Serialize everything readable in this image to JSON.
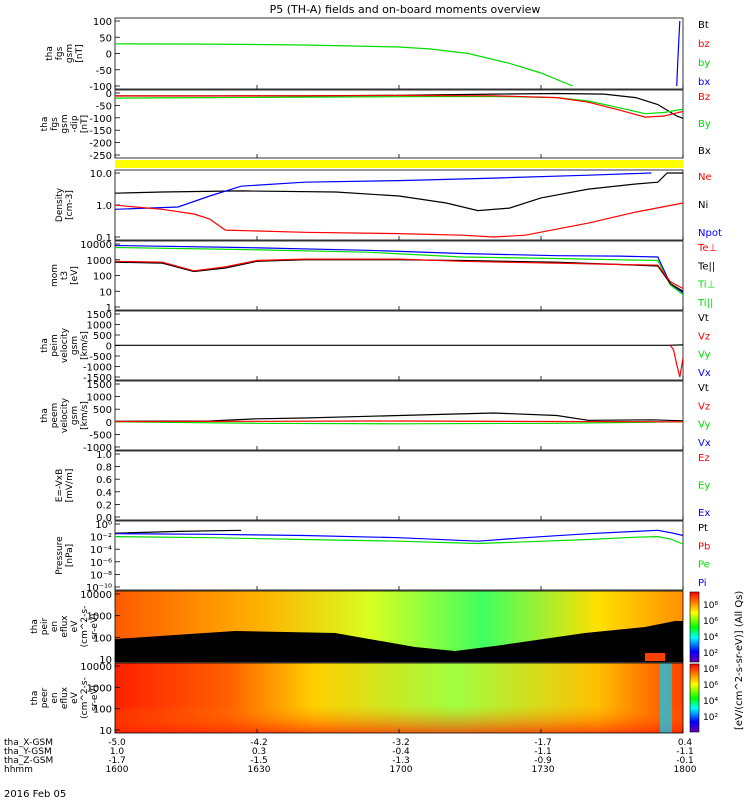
{
  "title": "P5 (TH-A) fields and on-board moments overview",
  "date_label": "2016 Feb 05",
  "colorbar": {
    "label": "[eV/(cm^2-s-sr-eV)] (All Qs)",
    "ticks1": [
      "10⁸",
      "10⁶",
      "10⁴",
      "10²"
    ],
    "ticks2": [
      "10⁸",
      "10⁶",
      "10⁴",
      "10²"
    ]
  },
  "colors": {
    "black": "#000000",
    "red": "#ff0000",
    "green": "#00dd00",
    "blue": "#0000ff",
    "yellow": "#ffff00"
  },
  "chart_data": {
    "type": "line",
    "x_ticks_label": [
      "1600",
      "1630",
      "1700",
      "1730",
      "1800"
    ],
    "ephemeris": [
      {
        "label": "tha_X-GSM",
        "values": [
          "-5.0",
          "-4.2",
          "-3.2",
          "-1.7",
          "0.4"
        ]
      },
      {
        "label": "tha_Y-GSM",
        "values": [
          "1.0",
          "0.3",
          "-0.4",
          "-1.1",
          "-1.1"
        ]
      },
      {
        "label": "tha_Z-GSM",
        "values": [
          "-1.7",
          "-1.5",
          "-1.3",
          "-0.9",
          "-0.1"
        ]
      },
      {
        "label": "hhmm",
        "values": [
          "1600",
          "1630",
          "1700",
          "1730",
          "1800"
        ]
      }
    ],
    "panels": [
      {
        "id": "p1",
        "ylabel": [
          "tha",
          "fgs",
          "gsm",
          "[nT]"
        ],
        "yticks": [
          "100",
          "50",
          "0",
          "-50",
          "-100"
        ],
        "legend": [
          {
            "text": "Bt",
            "color": "#000000"
          },
          {
            "text": "bz",
            "color": "#ff0000"
          },
          {
            "text": "by",
            "color": "#00dd00"
          },
          {
            "text": "bx",
            "color": "#0000ff"
          }
        ],
        "ylim": [
          -100,
          100
        ],
        "series": [
          {
            "color": "#00dd00",
            "x": [
              0,
              30,
              60,
              90,
              100,
              112,
              125,
              135,
              145
            ],
            "y": [
              30,
              29,
              26,
              20,
              14,
              0,
              -30,
              -60,
              -100
            ]
          },
          {
            "color": "#0000ff",
            "x": [
              178,
              178.4,
              179
            ],
            "y": [
              -100,
              -10,
              100
            ]
          }
        ]
      },
      {
        "id": "p2",
        "ylabel": [
          "tha",
          "fgs",
          "gsm",
          "-dip",
          "[nT]"
        ],
        "yticks": [
          "0",
          "-50",
          "-100",
          "-150",
          "-200",
          "-250"
        ],
        "legend": [
          {
            "text": "Bz",
            "color": "#ff0000"
          },
          {
            "text": "By",
            "color": "#00dd00"
          },
          {
            "text": "Bx",
            "color": "#000000"
          }
        ],
        "ylim": [
          -260,
          10
        ],
        "series": [
          {
            "color": "#000000",
            "x": [
              0,
              30,
              60,
              90,
              120,
              140,
              155,
              165,
              172,
              178,
              180
            ],
            "y": [
              -2,
              -2,
              -2,
              0,
              5,
              8,
              5,
              -10,
              -40,
              -90,
              -100
            ]
          },
          {
            "color": "#00dd00",
            "x": [
              0,
              30,
              60,
              90,
              120,
              140,
              150,
              160,
              168,
              174,
              180
            ],
            "y": [
              -12,
              -10,
              -8,
              -6,
              -5,
              -10,
              -25,
              -55,
              -80,
              -75,
              -60
            ]
          },
          {
            "color": "#ff0000",
            "x": [
              0,
              30,
              60,
              90,
              120,
              140,
              150,
              160,
              168,
              174,
              180
            ],
            "y": [
              -3,
              -3,
              -2,
              -1,
              -2,
              -10,
              -30,
              -65,
              -95,
              -90,
              -70
            ]
          }
        ]
      },
      {
        "id": "p4",
        "ylabel": [
          "Density",
          "[cm-3]"
        ],
        "yticks": [
          "10.0",
          "1.0",
          "0.1"
        ],
        "legend": [
          {
            "text": "Ne",
            "color": "#ff0000"
          },
          {
            "text": "Ni",
            "color": "#000000"
          },
          {
            "text": "Npot",
            "color": "#0000ff"
          }
        ],
        "scale": "log",
        "ylim": [
          0.05,
          30
        ],
        "series": [
          {
            "color": "#000000",
            "x": [
              0,
              15,
              40,
              70,
              90,
              105,
              115,
              125,
              135,
              150,
              165,
              172,
              175,
              180
            ],
            "y": [
              4,
              4.5,
              5,
              4.5,
              3,
              1.5,
              0.7,
              0.9,
              2.5,
              6,
              10,
              12,
              30,
              30
            ]
          },
          {
            "color": "#0000ff",
            "x": [
              0,
              20,
              30,
              40,
              60,
              90,
              120,
              150,
              170
            ],
            "y": [
              0.8,
              1,
              3,
              8,
              12,
              14,
              18,
              24,
              30
            ]
          },
          {
            "color": "#ff0000",
            "x": [
              0,
              15,
              25,
              30,
              35,
              60,
              90,
              110,
              120,
              130,
              150,
              165,
              180
            ],
            "y": [
              1.2,
              0.8,
              0.5,
              0.3,
              0.1,
              0.08,
              0.07,
              0.06,
              0.05,
              0.06,
              0.2,
              0.6,
              1.5
            ]
          }
        ]
      },
      {
        "id": "p5",
        "ylabel": [
          "mom",
          "t3",
          "[eV]"
        ],
        "yticks": [
          "10000",
          "1000",
          "100",
          "10",
          "1"
        ],
        "legend": [
          {
            "text": "Te⊥",
            "color": "#ff0000"
          },
          {
            "text": "Te||",
            "color": "#000000"
          },
          {
            "text": "Ti⊥",
            "color": "#00dd00"
          },
          {
            "text": "Ti||",
            "color": "#00dd00"
          }
        ],
        "scale": "log",
        "ylim": [
          1,
          10000
        ],
        "series": [
          {
            "color": "#0000ff",
            "x": [
              0,
              40,
              80,
              110,
              140,
              160,
              172,
              176,
              180
            ],
            "y": [
              8000,
              6000,
              4000,
              2500,
              1800,
              1700,
              1500,
              30,
              8
            ]
          },
          {
            "color": "#00dd00",
            "x": [
              0,
              40,
              80,
              110,
              140,
              160,
              172,
              176,
              180
            ],
            "y": [
              6000,
              4500,
              3000,
              1500,
              1200,
              1000,
              900,
              25,
              6
            ]
          },
          {
            "color": "#000000",
            "x": [
              0,
              15,
              25,
              35,
              45,
              60,
              90,
              110,
              140,
              160,
              172,
              176,
              180
            ],
            "y": [
              700,
              600,
              180,
              300,
              800,
              1000,
              1000,
              900,
              700,
              500,
              400,
              30,
              10
            ]
          },
          {
            "color": "#ff0000",
            "x": [
              0,
              15,
              25,
              35,
              45,
              60,
              90,
              110,
              140,
              160,
              172,
              176,
              180
            ],
            "y": [
              800,
              700,
              200,
              350,
              900,
              1100,
              1100,
              800,
              600,
              500,
              450,
              40,
              15
            ]
          }
        ]
      },
      {
        "id": "p6",
        "ylabel": [
          "tha",
          "peim",
          "velocity",
          "gsm",
          "[km/s]"
        ],
        "yticks": [
          "1500",
          "1000",
          "500",
          "0",
          "-500",
          "-1000",
          "-1500"
        ],
        "legend": [
          {
            "text": "Vt",
            "color": "#000000"
          },
          {
            "text": "Vz",
            "color": "#ff0000"
          },
          {
            "text": "Vy",
            "color": "#00dd00"
          },
          {
            "text": "Vx",
            "color": "#0000ff"
          }
        ],
        "ylim": [
          -1500,
          1500
        ],
        "series": [
          {
            "color": "#000000",
            "x": [
              0,
              60,
              120,
              175,
              180
            ],
            "y": [
              10,
              10,
              10,
              10,
              30
            ]
          },
          {
            "color": "#ff0000",
            "x": [
              176,
              177,
              178,
              179,
              180
            ],
            "y": [
              0,
              -200,
              -900,
              -1500,
              -600
            ]
          }
        ]
      },
      {
        "id": "p7",
        "ylabel": [
          "tha",
          "peem",
          "velocity",
          "gsm",
          "[km/s]"
        ],
        "yticks": [
          "1500",
          "1000",
          "500",
          "0",
          "-500",
          "-1000"
        ],
        "legend": [
          {
            "text": "Vt",
            "color": "#000000"
          },
          {
            "text": "Vz",
            "color": "#ff0000"
          },
          {
            "text": "Vy",
            "color": "#00dd00"
          },
          {
            "text": "Vx",
            "color": "#0000ff"
          }
        ],
        "ylim": [
          -1000,
          1500
        ],
        "series": [
          {
            "color": "#000000",
            "x": [
              0,
              30,
              45,
              60,
              90,
              120,
              140,
              150,
              170,
              180
            ],
            "y": [
              20,
              30,
              120,
              150,
              250,
              350,
              250,
              60,
              80,
              40
            ]
          },
          {
            "color": "#00dd00",
            "x": [
              0,
              45,
              90,
              140,
              180
            ],
            "y": [
              0,
              -60,
              -80,
              -60,
              0
            ]
          },
          {
            "color": "#ff0000",
            "x": [
              0,
              45,
              90,
              140,
              180
            ],
            "y": [
              10,
              20,
              30,
              10,
              0
            ]
          }
        ]
      },
      {
        "id": "p8",
        "ylabel": [
          "E=-VxB",
          "[mV/m]"
        ],
        "yticks": [
          "1.0",
          "0.8",
          "0.6",
          "0.4",
          "0.2",
          "0.0"
        ],
        "legend": [
          {
            "text": "Ez",
            "color": "#ff0000"
          },
          {
            "text": "Ey",
            "color": "#00dd00"
          },
          {
            "text": "Ex",
            "color": "#0000ff"
          }
        ],
        "ylim": [
          0,
          1
        ],
        "series": []
      },
      {
        "id": "p9",
        "ylabel": [
          "Pressure",
          "[nPa]"
        ],
        "yticks": [
          "10⁰",
          "10⁻²",
          "10⁻⁴",
          "10⁻⁶",
          "10⁻⁸",
          "10⁻¹⁰"
        ],
        "legend": [
          {
            "text": "Pt",
            "color": "#000000"
          },
          {
            "text": "Pb",
            "color": "#ff0000"
          },
          {
            "text": "Pe",
            "color": "#00dd00"
          },
          {
            "text": "Pi",
            "color": "#0000ff"
          }
        ],
        "scale": "log",
        "ylim": [
          -10,
          1
        ],
        "series": [
          {
            "color": "#000000",
            "x": [
              0,
              20,
              40
            ],
            "y": [
              -0.6,
              -0.3,
              -0.1
            ]
          },
          {
            "color": "#0000ff",
            "x": [
              0,
              30,
              60,
              90,
              115,
              130,
              150,
              165,
              172,
              176,
              180
            ],
            "y": [
              -0.7,
              -0.8,
              -1,
              -1.4,
              -2,
              -1.4,
              -0.7,
              -0.3,
              -0.1,
              -0.5,
              -1
            ]
          },
          {
            "color": "#00dd00",
            "x": [
              0,
              30,
              60,
              90,
              115,
              130,
              150,
              165,
              172,
              176,
              180
            ],
            "y": [
              -1.2,
              -1.4,
              -1.7,
              -2,
              -2.4,
              -2.1,
              -1.7,
              -1.3,
              -1.2,
              -1.6,
              -2.5
            ]
          }
        ]
      },
      {
        "id": "p10",
        "type": "heatmap",
        "ylabel": [
          "tha",
          "peir",
          "en",
          "eflux",
          "eV",
          "(cm^2-s-",
          "sr-eV)"
        ],
        "yticks": [
          "10000",
          "1000",
          "100",
          "10"
        ]
      },
      {
        "id": "p11",
        "type": "heatmap",
        "ylabel": [
          "tha",
          "peer",
          "en",
          "eflux",
          "eV",
          "(cm^2-s-",
          "sr-eV)"
        ],
        "yticks": [
          "10000",
          "1000",
          "100",
          "10"
        ]
      }
    ]
  }
}
